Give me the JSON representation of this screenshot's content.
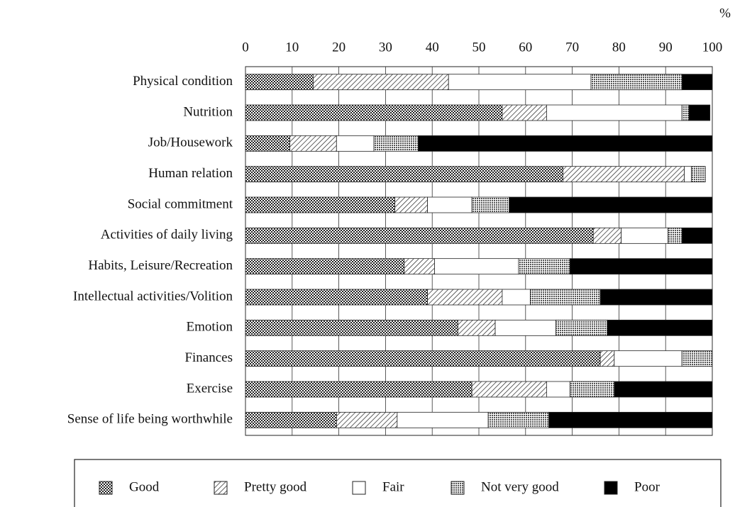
{
  "chart_data": {
    "type": "stacked-barh",
    "x_label": "%",
    "categories": [
      "Physical condition",
      "Nutrition",
      "Job/Housework",
      "Human relation",
      "Social commitment",
      "Activities of daily living",
      "Habits, Leisure/Recreation",
      "Intellectual activities/Volition",
      "Emotion",
      "Finances",
      "Exercise",
      "Sense of life being worthwhile"
    ],
    "series": [
      {
        "name": "Good",
        "color": "url(#pat-good)",
        "values": [
          14.5,
          55,
          9.5,
          68,
          32,
          74.5,
          34,
          39,
          45.5,
          76,
          48.5,
          19.5
        ]
      },
      {
        "name": "Pretty good",
        "color": "url(#pat-pretty)",
        "values": [
          29,
          9.5,
          10,
          26,
          7,
          6,
          6.5,
          16,
          8,
          3,
          16,
          13
        ]
      },
      {
        "name": "Fair",
        "color": "#ffffff",
        "values": [
          30.5,
          29,
          8,
          1.5,
          9.5,
          10,
          18,
          6,
          13,
          14.5,
          5,
          19.5
        ]
      },
      {
        "name": "Not very good",
        "color": "url(#pat-notgood)",
        "values": [
          19.5,
          1.5,
          9.5,
          3,
          8,
          3,
          11,
          15,
          11,
          6.5,
          9.5,
          13
        ]
      },
      {
        "name": "Poor",
        "color": "#000000",
        "values": [
          6.5,
          4.5,
          63,
          0,
          43.5,
          6.5,
          30.5,
          24,
          22.5,
          0,
          21,
          35
        ]
      }
    ],
    "xlim": [
      0,
      100
    ],
    "xticks": [
      0,
      10,
      20,
      30,
      40,
      50,
      60,
      70,
      80,
      90,
      100
    ],
    "grid": true
  }
}
